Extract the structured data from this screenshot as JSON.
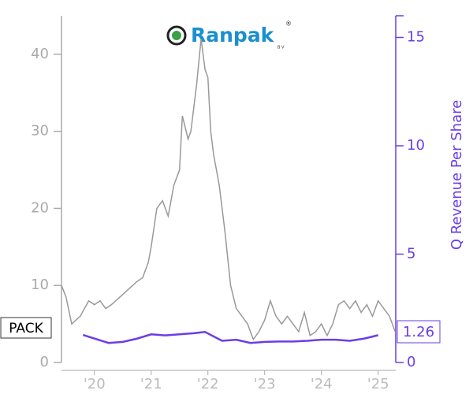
{
  "chart_data": {
    "type": "line",
    "logo": "Ranpak",
    "logo_sub": "B V",
    "logo_mark": "®",
    "y2label": "Q Revenue Per Share",
    "xlim": [
      2019.42,
      2025.31
    ],
    "xticks": [
      {
        "value": 2020,
        "label": "'20"
      },
      {
        "value": 2021,
        "label": "'21"
      },
      {
        "value": 2022,
        "label": "'22"
      },
      {
        "value": 2023,
        "label": "'23"
      },
      {
        "value": 2024,
        "label": "'24"
      },
      {
        "value": 2025,
        "label": "'25"
      }
    ],
    "ylim": [
      0,
      45
    ],
    "yticks": [
      0,
      10,
      20,
      30,
      40
    ],
    "y2lim": [
      0,
      16
    ],
    "y2ticks": [
      0,
      5,
      10,
      15
    ],
    "series": [
      {
        "name": "PACK",
        "color": "#999999",
        "x": [
          2019.42,
          2019.5,
          2019.6,
          2019.75,
          2019.9,
          2020.0,
          2020.1,
          2020.2,
          2020.3,
          2020.45,
          2020.6,
          2020.75,
          2020.85,
          2020.95,
          2021.0,
          2021.1,
          2021.2,
          2021.3,
          2021.4,
          2021.5,
          2021.55,
          2021.65,
          2021.7,
          2021.8,
          2021.88,
          2021.95,
          2022.0,
          2022.05,
          2022.1,
          2022.2,
          2022.3,
          2022.4,
          2022.5,
          2022.6,
          2022.7,
          2022.8,
          2022.9,
          2023.0,
          2023.1,
          2023.2,
          2023.3,
          2023.4,
          2023.5,
          2023.6,
          2023.7,
          2023.8,
          2023.9,
          2024.0,
          2024.1,
          2024.2,
          2024.3,
          2024.4,
          2024.5,
          2024.6,
          2024.7,
          2024.8,
          2024.9,
          2025.0,
          2025.1,
          2025.2,
          2025.3
        ],
        "values": [
          10,
          8.5,
          5,
          6,
          8,
          7.5,
          8,
          7,
          7.5,
          8.5,
          9.5,
          10.5,
          11,
          13,
          15,
          20,
          21,
          19,
          23,
          25,
          32,
          29,
          30,
          36,
          42,
          38,
          37,
          30,
          27,
          23,
          17,
          10,
          7,
          6,
          5,
          3,
          4,
          5.5,
          8,
          6,
          5,
          6,
          5,
          4,
          6.5,
          3.5,
          4,
          5,
          3.5,
          5,
          7.5,
          8,
          7,
          8,
          6.5,
          7.5,
          6,
          8,
          7,
          6,
          4
        ]
      },
      {
        "color": "#6a3de8",
        "axis": "y2",
        "x": [
          2019.8,
          2020.25,
          2020.5,
          2020.75,
          2021.0,
          2021.25,
          2021.5,
          2021.75,
          2021.95,
          2022.25,
          2022.5,
          2022.75,
          2023.0,
          2023.25,
          2023.5,
          2023.75,
          2024.0,
          2024.25,
          2024.5,
          2024.75,
          2025.0
        ],
        "values": [
          1.27,
          0.9,
          0.95,
          1.1,
          1.3,
          1.25,
          1.3,
          1.35,
          1.41,
          1.0,
          1.05,
          0.9,
          0.95,
          0.97,
          0.97,
          1.0,
          1.05,
          1.05,
          1.0,
          1.1,
          1.26
        ]
      }
    ]
  }
}
